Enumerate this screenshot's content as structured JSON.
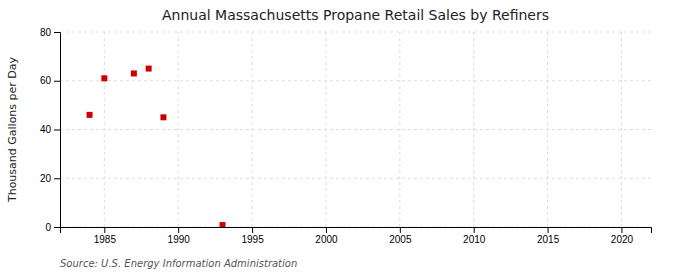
{
  "chart_data": {
    "type": "scatter",
    "title": "Annual Massachusetts Propane Retail Sales by Refiners",
    "y_label": "Thousand Gallons per Day",
    "annotation": "Source: U.S. Energy Information Administration",
    "x": [
      1984,
      1985,
      1987,
      1988,
      1989,
      1993
    ],
    "values": [
      46,
      61,
      63,
      65,
      45,
      0.8
    ],
    "color": "#cc0000",
    "marker": "square",
    "xlim": [
      1982,
      2022
    ],
    "ylim": [
      0,
      80
    ],
    "xticks": [
      1985,
      1990,
      1995,
      2000,
      2005,
      2010,
      2015,
      2020
    ],
    "yticks": [
      0,
      20,
      40,
      60,
      80
    ],
    "grid": true
  }
}
